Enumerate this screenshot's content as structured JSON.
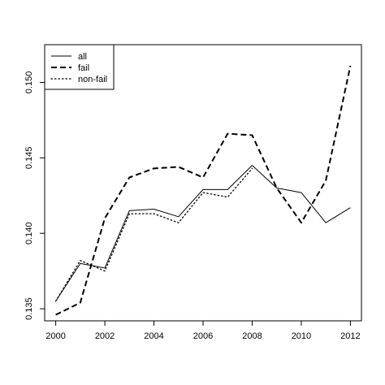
{
  "chart_data": {
    "type": "line",
    "title": "",
    "xlabel": "",
    "ylabel": "",
    "x": [
      2000,
      2001,
      2002,
      2003,
      2004,
      2005,
      2006,
      2007,
      2008,
      2009,
      2010,
      2011,
      2012
    ],
    "xlim": [
      1999.55,
      2012.45
    ],
    "ylim": [
      0.1342,
      0.1525
    ],
    "xticks": [
      2000,
      2002,
      2004,
      2006,
      2008,
      2010,
      2012
    ],
    "yticks": [
      0.135,
      0.14,
      0.145,
      0.15
    ],
    "ytick_labels": [
      "0.135",
      "0.140",
      "0.145",
      "0.150"
    ],
    "legend_position": "top-left",
    "grid": false,
    "series": [
      {
        "name": "all",
        "line_style": "solid",
        "values": [
          0.1355,
          0.138,
          0.1377,
          0.1415,
          0.1416,
          0.1411,
          0.1429,
          0.1429,
          0.1445,
          0.143,
          0.1427,
          0.1407,
          0.1417
        ]
      },
      {
        "name": "fail",
        "line_style": "dashed",
        "values": [
          0.1346,
          0.1354,
          0.141,
          0.1437,
          0.1443,
          0.1444,
          0.1437,
          0.1466,
          0.1465,
          0.143,
          0.1407,
          0.1435,
          0.1511
        ]
      },
      {
        "name": "non-fail",
        "line_style": "dotted",
        "values": [
          0.1355,
          0.1382,
          0.1375,
          0.1413,
          0.1413,
          0.1407,
          0.1427,
          0.1424,
          0.1443,
          null,
          null,
          null,
          null
        ]
      }
    ]
  }
}
